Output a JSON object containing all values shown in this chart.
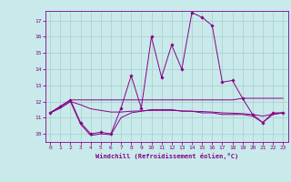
{
  "xlabel": "Windchill (Refroidissement éolien,°C)",
  "background_color": "#c8eaea",
  "grid_color": "#aacccc",
  "line_color": "#880088",
  "xlim": [
    -0.5,
    23.5
  ],
  "ylim": [
    9.5,
    17.6
  ],
  "yticks": [
    10,
    11,
    12,
    13,
    14,
    15,
    16,
    17
  ],
  "xticks": [
    0,
    1,
    2,
    3,
    4,
    5,
    6,
    7,
    8,
    9,
    10,
    11,
    12,
    13,
    14,
    15,
    16,
    17,
    18,
    19,
    20,
    21,
    22,
    23
  ],
  "line1_x": [
    0,
    1,
    2,
    3,
    4,
    5,
    6,
    7,
    8,
    9,
    10,
    11,
    12,
    13,
    14,
    15,
    16,
    17,
    18,
    19,
    20,
    21,
    22,
    23
  ],
  "line1_y": [
    11.3,
    11.7,
    12.1,
    10.7,
    10.0,
    10.1,
    10.0,
    11.6,
    13.6,
    11.6,
    16.0,
    13.5,
    15.5,
    14.0,
    17.5,
    17.2,
    16.7,
    13.2,
    13.3,
    12.2,
    11.2,
    10.7,
    11.3,
    11.3
  ],
  "line2_x": [
    0,
    1,
    2,
    3,
    4,
    5,
    6,
    7,
    8,
    9,
    10,
    11,
    12,
    13,
    14,
    15,
    16,
    17,
    18,
    19,
    20,
    21,
    22,
    23
  ],
  "line2_y": [
    11.3,
    11.7,
    12.1,
    12.1,
    12.1,
    12.1,
    12.1,
    12.1,
    12.1,
    12.1,
    12.1,
    12.1,
    12.1,
    12.1,
    12.1,
    12.1,
    12.1,
    12.1,
    12.1,
    12.2,
    12.2,
    12.2,
    12.2,
    12.2
  ],
  "line3_x": [
    0,
    1,
    2,
    3,
    4,
    5,
    6,
    7,
    8,
    9,
    10,
    11,
    12,
    13,
    14,
    15,
    16,
    17,
    18,
    19,
    20,
    21,
    22,
    23
  ],
  "line3_y": [
    11.3,
    11.6,
    12.0,
    10.6,
    9.9,
    10.0,
    9.95,
    11.0,
    11.3,
    11.4,
    11.5,
    11.5,
    11.5,
    11.4,
    11.4,
    11.3,
    11.3,
    11.2,
    11.2,
    11.2,
    11.1,
    10.7,
    11.2,
    11.3
  ],
  "line4_x": [
    0,
    1,
    2,
    3,
    4,
    5,
    6,
    7,
    8,
    9,
    10,
    11,
    12,
    13,
    14,
    15,
    16,
    17,
    18,
    19,
    20,
    21,
    22,
    23
  ],
  "line4_y": [
    11.3,
    11.6,
    12.0,
    11.8,
    11.55,
    11.45,
    11.35,
    11.35,
    11.4,
    11.42,
    11.45,
    11.45,
    11.45,
    11.42,
    11.4,
    11.38,
    11.35,
    11.3,
    11.28,
    11.25,
    11.2,
    11.1,
    11.22,
    11.3
  ]
}
